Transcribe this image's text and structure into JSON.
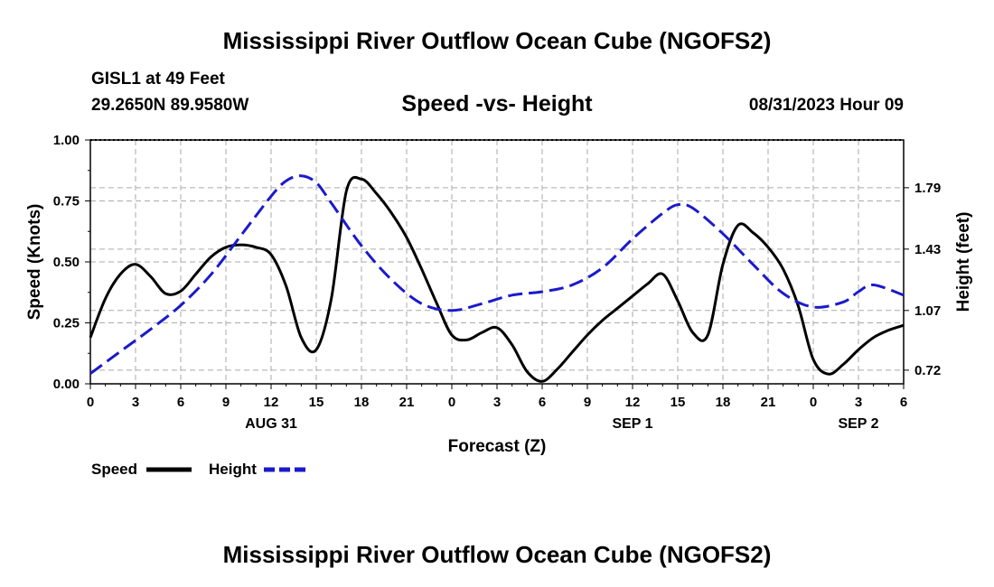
{
  "header": {
    "title": "Mississippi River Outflow Ocean Cube (NGOFS2)",
    "station": "GISL1 at 49 Feet",
    "coords": "29.2650N  89.9580W",
    "subtitle": "Speed -vs- Height",
    "datetime": "08/31/2023 Hour 09"
  },
  "footer": {
    "title": "Mississippi River Outflow Ocean Cube (NGOFS2)"
  },
  "legend": {
    "speed_label": "Speed",
    "height_label": "Height"
  },
  "colors": {
    "speed": "#000000",
    "height": "#1a1acc",
    "grid": "#aaaaaa"
  },
  "chart_data": {
    "type": "line",
    "title": "Speed -vs- Height",
    "xlabel": "Forecast (Z)",
    "ylabel": "Speed (Knots)",
    "y2label": "Height (feet)",
    "xlim": [
      0,
      54
    ],
    "ylim": [
      0,
      1.0
    ],
    "y2lim": [
      0.64,
      2.07
    ],
    "x_ticks": [
      0,
      3,
      6,
      9,
      12,
      15,
      18,
      21,
      24,
      27,
      30,
      33,
      36,
      39,
      42,
      45,
      48,
      51,
      54
    ],
    "x_tick_labels": [
      "0",
      "3",
      "6",
      "9",
      "12",
      "15",
      "18",
      "21",
      "0",
      "3",
      "6",
      "9",
      "12",
      "15",
      "18",
      "21",
      "0",
      "3",
      "6"
    ],
    "day_labels": [
      {
        "x": 12,
        "label": "AUG 31"
      },
      {
        "x": 36,
        "label": "SEP 1"
      },
      {
        "x": 51,
        "label": "SEP 2"
      }
    ],
    "y_ticks": [
      0.0,
      0.25,
      0.5,
      0.75,
      1.0
    ],
    "y_tick_labels": [
      "0.00",
      "0.25",
      "0.50",
      "0.75",
      "1.00"
    ],
    "y2_ticks": [
      0.72,
      1.07,
      1.43,
      1.79
    ],
    "y2_tick_labels": [
      "0.72",
      "1.07",
      "1.43",
      "1.79"
    ],
    "grid": true,
    "series": [
      {
        "name": "Speed",
        "axis": "left",
        "style": "solid",
        "x": [
          0,
          1,
          2,
          3,
          4,
          5,
          6,
          7,
          8,
          9,
          10,
          11,
          12,
          13,
          14,
          15,
          16,
          17,
          18,
          19,
          20,
          21,
          22,
          23,
          24,
          25,
          26,
          27,
          28,
          29,
          30,
          31,
          32,
          33,
          34,
          35,
          36,
          37,
          38,
          39,
          40,
          41,
          42,
          43,
          44,
          45,
          46,
          47,
          48,
          49,
          50,
          51,
          52,
          53,
          54
        ],
        "values": [
          0.19,
          0.35,
          0.45,
          0.49,
          0.44,
          0.37,
          0.38,
          0.45,
          0.52,
          0.56,
          0.57,
          0.56,
          0.53,
          0.4,
          0.19,
          0.14,
          0.35,
          0.79,
          0.84,
          0.78,
          0.7,
          0.6,
          0.47,
          0.33,
          0.2,
          0.18,
          0.21,
          0.23,
          0.16,
          0.05,
          0.01,
          0.06,
          0.13,
          0.2,
          0.26,
          0.31,
          0.36,
          0.41,
          0.45,
          0.34,
          0.21,
          0.2,
          0.49,
          0.65,
          0.62,
          0.56,
          0.47,
          0.32,
          0.1,
          0.04,
          0.08,
          0.14,
          0.19,
          0.22,
          0.24
        ]
      },
      {
        "name": "Height",
        "axis": "right",
        "style": "dashed",
        "x": [
          0,
          2,
          4,
          6,
          8,
          10,
          12,
          13,
          14,
          15,
          16,
          18,
          20,
          22,
          24,
          26,
          28,
          30,
          32,
          34,
          36,
          38,
          39,
          40,
          42,
          44,
          46,
          48,
          50,
          51,
          52,
          54
        ],
        "values": [
          0.7,
          0.83,
          0.96,
          1.1,
          1.28,
          1.51,
          1.74,
          1.83,
          1.86,
          1.82,
          1.7,
          1.45,
          1.25,
          1.11,
          1.07,
          1.11,
          1.16,
          1.18,
          1.22,
          1.32,
          1.49,
          1.64,
          1.69,
          1.67,
          1.52,
          1.34,
          1.17,
          1.09,
          1.12,
          1.18,
          1.22,
          1.16
        ]
      }
    ]
  }
}
